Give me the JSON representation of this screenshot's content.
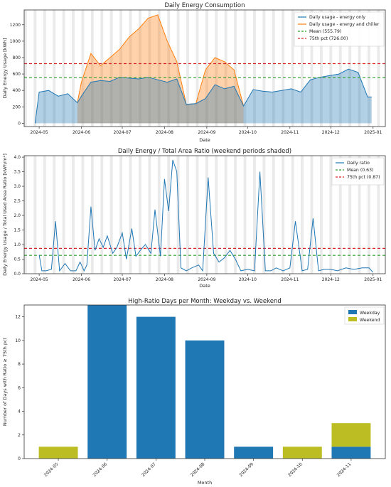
{
  "chart_data": [
    {
      "type": "area",
      "title": "Daily Energy Consumption",
      "xlabel": "Date",
      "ylabel": "Daily Energy Usage [kWh]",
      "xlim": [
        "2024-04-20",
        "2025-01-10"
      ],
      "ylim": [
        -40,
        1380
      ],
      "x_ticks": [
        "2024-05",
        "2024-06",
        "2024-07",
        "2024-08",
        "2024-09",
        "2024-10",
        "2024-11",
        "2024-12",
        "2025-01"
      ],
      "y_ticks": [
        0,
        200,
        400,
        600,
        800,
        1000,
        1200
      ],
      "weekend_shading": true,
      "legend_position": "top-right",
      "series": [
        {
          "name": "Daily usage - energy only",
          "color": "#1f77b4",
          "x": [
            "2024-04-28",
            "2024-05-01",
            "2024-05-08",
            "2024-05-15",
            "2024-05-22",
            "2024-05-29",
            "2024-06-01",
            "2024-06-08",
            "2024-06-15",
            "2024-06-22",
            "2024-06-29",
            "2024-07-06",
            "2024-07-13",
            "2024-07-20",
            "2024-07-27",
            "2024-08-03",
            "2024-08-10",
            "2024-08-17",
            "2024-08-24",
            "2024-08-31",
            "2024-09-07",
            "2024-09-14",
            "2024-09-21",
            "2024-09-28",
            "2024-10-05",
            "2024-10-12",
            "2024-10-19",
            "2024-10-26",
            "2024-11-02",
            "2024-11-09",
            "2024-11-16",
            "2024-11-23",
            "2024-11-30",
            "2024-12-07",
            "2024-12-14",
            "2024-12-21",
            "2024-12-28",
            "2024-12-31"
          ],
          "values": [
            0,
            380,
            400,
            330,
            360,
            250,
            330,
            500,
            520,
            510,
            560,
            550,
            540,
            560,
            530,
            500,
            540,
            230,
            240,
            300,
            470,
            420,
            450,
            210,
            410,
            390,
            380,
            400,
            420,
            380,
            530,
            560,
            580,
            600,
            660,
            620,
            320,
            320
          ]
        },
        {
          "name": "Daily usage - energy and chiller",
          "color": "#ff7f0e",
          "x": [
            "2024-05-29",
            "2024-06-01",
            "2024-06-08",
            "2024-06-15",
            "2024-06-22",
            "2024-06-29",
            "2024-07-06",
            "2024-07-13",
            "2024-07-20",
            "2024-07-27",
            "2024-08-03",
            "2024-08-10",
            "2024-08-17",
            "2024-08-24",
            "2024-08-31",
            "2024-09-07",
            "2024-09-14",
            "2024-09-21",
            "2024-09-28"
          ],
          "values": [
            250,
            500,
            850,
            700,
            800,
            900,
            1050,
            1150,
            1280,
            1320,
            1000,
            750,
            230,
            240,
            650,
            800,
            750,
            650,
            210
          ]
        }
      ],
      "reference_lines": [
        {
          "name": "Mean (555.79)",
          "value": 555.79,
          "color": "#2ca02c"
        },
        {
          "name": "75th pct (726.00)",
          "value": 726.0,
          "color": "#d62728"
        }
      ]
    },
    {
      "type": "line",
      "title": "Daily Energy / Total Area Ratio (weekend periods shaded)",
      "xlabel": "Date",
      "ylabel": "Daily Energy Usage / Total Used Area Ratio [kWh/m²]",
      "xlim": [
        "2024-04-20",
        "2025-01-10"
      ],
      "ylim": [
        0,
        4.05
      ],
      "x_ticks": [
        "2024-05",
        "2024-06",
        "2024-07",
        "2024-08",
        "2024-09",
        "2024-10",
        "2024-11",
        "2024-12",
        "2025-01"
      ],
      "y_ticks": [
        0.0,
        0.5,
        1.0,
        1.5,
        2.0,
        2.5,
        3.0,
        3.5,
        4.0
      ],
      "weekend_shading": true,
      "legend_position": "top-right",
      "series": [
        {
          "name": "Daily ratio",
          "color": "#1f77b4",
          "x": [
            "2024-05-01",
            "2024-05-03",
            "2024-05-06",
            "2024-05-10",
            "2024-05-13",
            "2024-05-16",
            "2024-05-20",
            "2024-05-24",
            "2024-05-28",
            "2024-05-31",
            "2024-06-03",
            "2024-06-05",
            "2024-06-08",
            "2024-06-11",
            "2024-06-14",
            "2024-06-17",
            "2024-06-20",
            "2024-06-24",
            "2024-06-27",
            "2024-07-01",
            "2024-07-04",
            "2024-07-08",
            "2024-07-11",
            "2024-07-15",
            "2024-07-18",
            "2024-07-22",
            "2024-07-25",
            "2024-07-29",
            "2024-08-01",
            "2024-08-04",
            "2024-08-07",
            "2024-08-10",
            "2024-08-13",
            "2024-08-17",
            "2024-08-21",
            "2024-08-26",
            "2024-08-29",
            "2024-09-02",
            "2024-09-06",
            "2024-09-10",
            "2024-09-14",
            "2024-09-18",
            "2024-09-22",
            "2024-09-26",
            "2024-10-01",
            "2024-10-06",
            "2024-10-10",
            "2024-10-14",
            "2024-10-18",
            "2024-10-22",
            "2024-10-27",
            "2024-11-01",
            "2024-11-05",
            "2024-11-10",
            "2024-11-14",
            "2024-11-18",
            "2024-11-22",
            "2024-11-26",
            "2024-12-01",
            "2024-12-06",
            "2024-12-12",
            "2024-12-18",
            "2024-12-24",
            "2024-12-29",
            "2025-01-01"
          ],
          "values": [
            0.65,
            0.1,
            0.1,
            0.15,
            1.8,
            0.1,
            0.35,
            0.1,
            0.1,
            0.4,
            0.1,
            0.3,
            2.3,
            0.8,
            1.2,
            0.9,
            1.3,
            0.7,
            0.9,
            1.4,
            0.5,
            1.55,
            0.6,
            0.85,
            1.0,
            0.7,
            2.2,
            0.6,
            3.25,
            2.15,
            3.9,
            3.5,
            0.2,
            0.1,
            0.2,
            0.3,
            0.1,
            3.3,
            0.7,
            0.4,
            0.55,
            0.8,
            0.5,
            0.1,
            0.15,
            0.1,
            3.5,
            0.1,
            0.1,
            0.2,
            0.1,
            0.2,
            1.8,
            0.1,
            0.15,
            1.9,
            0.1,
            0.15,
            0.15,
            0.1,
            0.2,
            0.15,
            0.2,
            0.2,
            0.05
          ]
        }
      ],
      "reference_lines": [
        {
          "name": "Mean (0.63)",
          "value": 0.63,
          "color": "#2ca02c"
        },
        {
          "name": "75th pct (0.87)",
          "value": 0.87,
          "color": "#d62728"
        }
      ]
    },
    {
      "type": "bar",
      "title": "High-Ratio Days per Month: Weekday vs. Weekend",
      "xlabel": "Month",
      "ylabel": "Number of Days with Ratio ≥ 75th pct",
      "categories": [
        "2024-05",
        "2024-06",
        "2024-07",
        "2024-08",
        "2024-09",
        "2024-10",
        "2024-11"
      ],
      "y_ticks": [
        0,
        2,
        4,
        6,
        8,
        10,
        12
      ],
      "ylim": [
        0,
        13
      ],
      "legend_position": "top-right",
      "series": [
        {
          "name": "Weekday",
          "color": "#1f77b4",
          "values": [
            0,
            13,
            12,
            10,
            1,
            0,
            1
          ]
        },
        {
          "name": "Weekend",
          "color": "#bcbd22",
          "values": [
            1,
            0,
            0,
            0,
            0,
            1,
            2
          ]
        }
      ]
    }
  ]
}
